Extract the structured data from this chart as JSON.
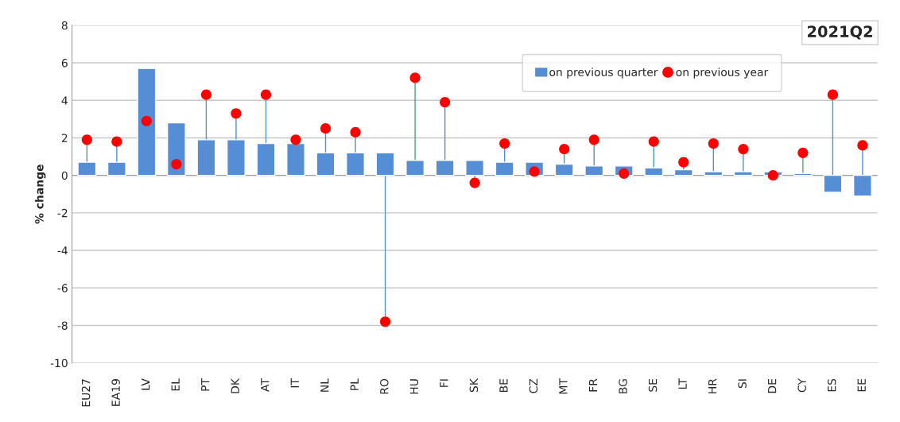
{
  "chart_data": {
    "type": "bar",
    "title": "2021Q2",
    "ylabel": "% change",
    "categories": [
      "EU27",
      "EA19",
      "LV",
      "EL",
      "PT",
      "DK",
      "AT",
      "IT",
      "NL",
      "PL",
      "RO",
      "HU",
      "FI",
      "SK",
      "BE",
      "CZ",
      "MT",
      "FR",
      "BG",
      "SE",
      "LT",
      "HR",
      "SI",
      "DE",
      "CY",
      "ES",
      "EE"
    ],
    "series": [
      {
        "name": "on previous quarter",
        "color": "#558ed5",
        "values": [
          0.7,
          0.7,
          5.7,
          2.8,
          1.9,
          1.9,
          1.7,
          1.7,
          1.2,
          1.2,
          1.2,
          0.8,
          0.8,
          0.8,
          0.7,
          0.7,
          0.6,
          0.5,
          0.5,
          0.4,
          0.3,
          0.2,
          0.2,
          0.2,
          0.1,
          -0.9,
          -1.1
        ]
      },
      {
        "name": "on previous year",
        "type": "lollipop",
        "color": "#ff0000",
        "values": [
          1.9,
          1.8,
          2.9,
          0.6,
          4.3,
          3.3,
          4.3,
          1.9,
          2.5,
          2.3,
          -7.8,
          5.2,
          3.9,
          -0.4,
          1.7,
          0.2,
          1.4,
          1.9,
          0.1,
          1.8,
          0.7,
          1.7,
          1.4,
          0.0,
          1.2,
          4.3,
          1.6
        ]
      }
    ],
    "ylim": [
      -10,
      8
    ],
    "yticks": [
      -10,
      -8,
      -6,
      -4,
      -2,
      0,
      2,
      4,
      6,
      8
    ],
    "grid": "y",
    "legend": "top",
    "marker": "circle"
  }
}
